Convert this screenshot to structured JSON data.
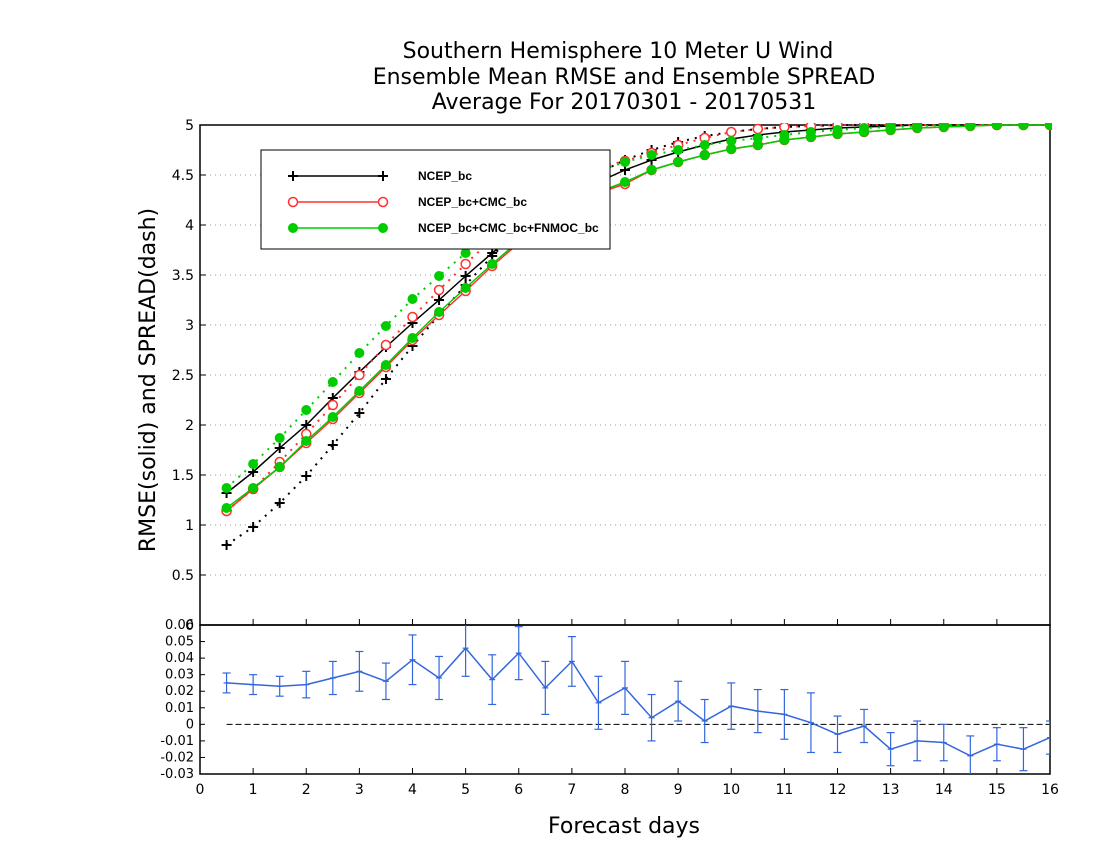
{
  "chart_data": [
    {
      "type": "line",
      "title_lines": [
        "Southern Hemisphere 10 Meter U Wind",
        "Ensemble Mean RMSE and Ensemble SPREAD",
        "Average For 20170301 - 20170531"
      ],
      "xlabel": "",
      "ylabel": "RMSE(solid) and SPREAD(dash)",
      "xlim": [
        0,
        16
      ],
      "ylim": [
        0,
        5
      ],
      "x_ticks": [
        "0",
        "1",
        "2",
        "3",
        "4",
        "5",
        "6",
        "7",
        "8",
        "9",
        "10",
        "11",
        "12",
        "13",
        "14",
        "15",
        "16"
      ],
      "y_ticks": [
        "0",
        "0.5",
        "1",
        "1.5",
        "2",
        "2.5",
        "3",
        "3.5",
        "4",
        "4.5",
        "5"
      ],
      "grid": "horizontal dotted",
      "legend_position": "top-left",
      "x": [
        0.5,
        1,
        1.5,
        2,
        2.5,
        3,
        3.5,
        4,
        4.5,
        5,
        5.5,
        6,
        6.5,
        7,
        7.5,
        8,
        8.5,
        9,
        9.5,
        10,
        10.5,
        11,
        11.5,
        12,
        12.5,
        13,
        13.5,
        14,
        14.5,
        15,
        15.5,
        16
      ],
      "series": [
        {
          "name": "NCEP_bc",
          "color": "#000000",
          "marker": "plus",
          "rmse": [
            1.32,
            1.53,
            1.77,
            2.0,
            2.27,
            2.53,
            2.78,
            3.02,
            3.25,
            3.49,
            3.72,
            3.93,
            4.12,
            4.29,
            4.43,
            4.55,
            4.65,
            4.73,
            4.8,
            4.86,
            4.9,
            4.93,
            4.95,
            4.97,
            4.98,
            4.99,
            5.0,
            5.0,
            5.0,
            5.0,
            5.0,
            5.0
          ],
          "spread": [
            0.8,
            0.98,
            1.22,
            1.49,
            1.8,
            2.12,
            2.46,
            2.79,
            3.1,
            3.4,
            3.69,
            3.95,
            4.17,
            4.36,
            4.52,
            4.65,
            4.75,
            4.83,
            4.89,
            4.93,
            4.96,
            4.98,
            4.99,
            5.0,
            5.0,
            5.0,
            5.0,
            5.0,
            5.0,
            5.0,
            5.0,
            5.0
          ]
        },
        {
          "name": "NCEP_bc+CMC_bc",
          "color": "#ff3030",
          "marker": "open-circle",
          "rmse": [
            1.14,
            1.36,
            1.58,
            1.82,
            2.06,
            2.32,
            2.58,
            2.85,
            3.1,
            3.34,
            3.59,
            3.82,
            4.03,
            4.21,
            4.32,
            4.41,
            4.55,
            4.63,
            4.7,
            4.76,
            4.8,
            4.85,
            4.88,
            4.91,
            4.93,
            4.95,
            4.97,
            4.98,
            4.99,
            5.0,
            5.0,
            5.0
          ],
          "spread": [
            1.14,
            1.36,
            1.63,
            1.91,
            2.2,
            2.5,
            2.8,
            3.08,
            3.35,
            3.61,
            3.86,
            4.08,
            4.28,
            4.45,
            4.58,
            4.64,
            4.72,
            4.8,
            4.87,
            4.93,
            4.96,
            4.98,
            4.99,
            5.0,
            5.0,
            5.0,
            5.0,
            5.0,
            5.0,
            5.0,
            5.0,
            5.0
          ]
        },
        {
          "name": "NCEP_bc+CMC_bc+FNMOC_bc",
          "color": "#00cc00",
          "marker": "filled-circle",
          "rmse": [
            1.17,
            1.37,
            1.58,
            1.84,
            2.08,
            2.34,
            2.6,
            2.87,
            3.13,
            3.37,
            3.61,
            3.84,
            4.05,
            4.22,
            4.33,
            4.43,
            4.55,
            4.63,
            4.7,
            4.76,
            4.8,
            4.85,
            4.88,
            4.91,
            4.93,
            4.95,
            4.97,
            4.98,
            4.99,
            5.0,
            5.0,
            5.0
          ],
          "spread": [
            1.37,
            1.61,
            1.87,
            2.15,
            2.43,
            2.72,
            2.99,
            3.26,
            3.49,
            3.72,
            3.93,
            4.12,
            4.29,
            4.43,
            4.54,
            4.63,
            4.7,
            4.75,
            4.8,
            4.84,
            4.87,
            4.9,
            4.93,
            4.95,
            4.97,
            4.98,
            4.99,
            5.0,
            5.0,
            5.0,
            5.0,
            5.0
          ]
        }
      ]
    },
    {
      "type": "line",
      "xlabel": "Forecast days",
      "xlim": [
        0,
        16
      ],
      "ylim": [
        -0.03,
        0.06
      ],
      "x_ticks": [
        "0",
        "1",
        "2",
        "3",
        "4",
        "5",
        "6",
        "7",
        "8",
        "9",
        "10",
        "11",
        "12",
        "13",
        "14",
        "15",
        "16"
      ],
      "y_ticks": [
        "-0.03",
        "-0.02",
        "-0.01",
        "0",
        "0.01",
        "0.02",
        "0.03",
        "0.04",
        "0.05",
        "0.06"
      ],
      "zero_line": true,
      "series": [
        {
          "color": "#3366dd",
          "marker": "error-bar",
          "x": [
            0.5,
            1,
            1.5,
            2,
            2.5,
            3,
            3.5,
            4,
            4.5,
            5,
            5.5,
            6,
            6.5,
            7,
            7.5,
            8,
            8.5,
            9,
            9.5,
            10,
            10.5,
            11,
            11.5,
            12,
            12.5,
            13,
            13.5,
            14,
            14.5,
            15,
            15.5,
            16
          ],
          "values": [
            0.025,
            0.024,
            0.023,
            0.024,
            0.028,
            0.032,
            0.026,
            0.039,
            0.028,
            0.046,
            0.027,
            0.043,
            0.022,
            0.038,
            0.013,
            0.022,
            0.004,
            0.014,
            0.002,
            0.011,
            0.008,
            0.006,
            0.001,
            -0.006,
            -0.001,
            -0.015,
            -0.01,
            -0.011,
            -0.019,
            -0.012,
            -0.015,
            -0.008
          ],
          "err": [
            0.006,
            0.006,
            0.006,
            0.008,
            0.01,
            0.012,
            0.011,
            0.015,
            0.013,
            0.017,
            0.015,
            0.016,
            0.016,
            0.015,
            0.016,
            0.016,
            0.014,
            0.012,
            0.013,
            0.014,
            0.013,
            0.015,
            0.018,
            0.011,
            0.01,
            0.01,
            0.012,
            0.011,
            0.012,
            0.01,
            0.013,
            0.01
          ]
        }
      ]
    }
  ]
}
